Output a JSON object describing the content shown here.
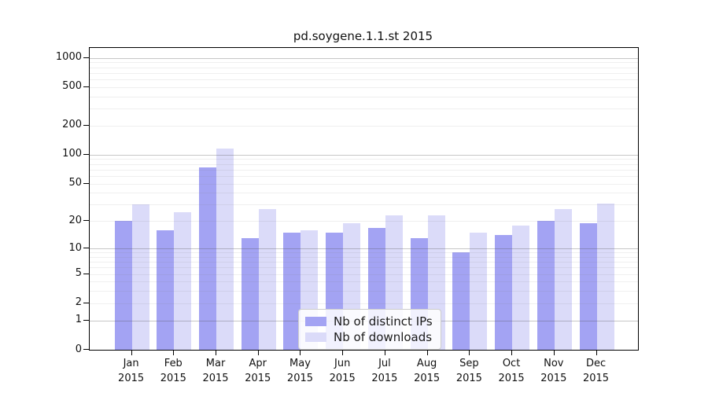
{
  "title": "pd.soygene.1.1.st 2015",
  "chart_data": {
    "type": "bar",
    "title": "pd.soygene.1.1.st 2015",
    "categories": [
      "Jan",
      "Feb",
      "Mar",
      "Apr",
      "May",
      "Jun",
      "Jul",
      "Aug",
      "Sep",
      "Oct",
      "Nov",
      "Dec"
    ],
    "year_label": "2015",
    "series": [
      {
        "name": "Nb of distinct IPs",
        "color": "#a3a3f3",
        "values": [
          20,
          16,
          74,
          13,
          15,
          15,
          17,
          13,
          9,
          14,
          20,
          19
        ]
      },
      {
        "name": "Nb of downloads",
        "color": "#dbdbf9",
        "values": [
          30,
          25,
          115,
          27,
          16,
          19,
          23,
          23,
          15,
          18,
          27,
          31
        ]
      }
    ],
    "xlabel": "",
    "ylabel": "",
    "yscale": "log1p",
    "ytick_values": [
      0,
      1,
      2,
      5,
      10,
      20,
      50,
      100,
      200,
      500,
      1000
    ],
    "ylim": [
      0,
      1264
    ],
    "grid": true,
    "legend_position": "lower center"
  }
}
